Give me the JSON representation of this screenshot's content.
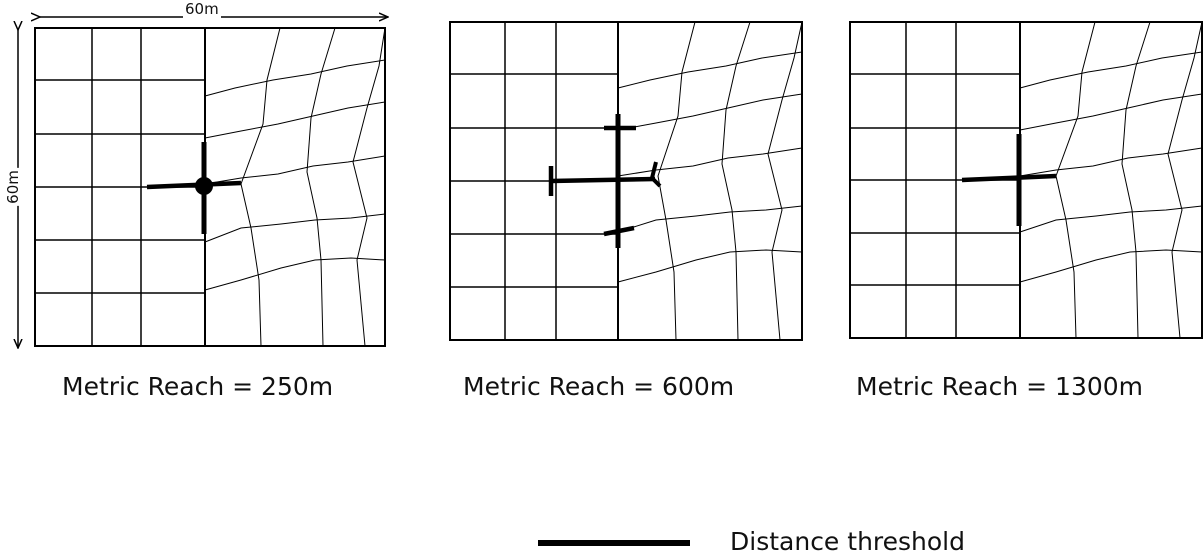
{
  "panels": [
    {
      "caption": "Metric Reach = 250m"
    },
    {
      "caption": "Metric Reach = 600m"
    },
    {
      "caption": "Metric Reach = 1300m"
    }
  ],
  "dimensions": {
    "width_label": "60m",
    "height_label": "60m"
  },
  "legend": {
    "label": "Distance threshold",
    "line_color": "#000000"
  }
}
